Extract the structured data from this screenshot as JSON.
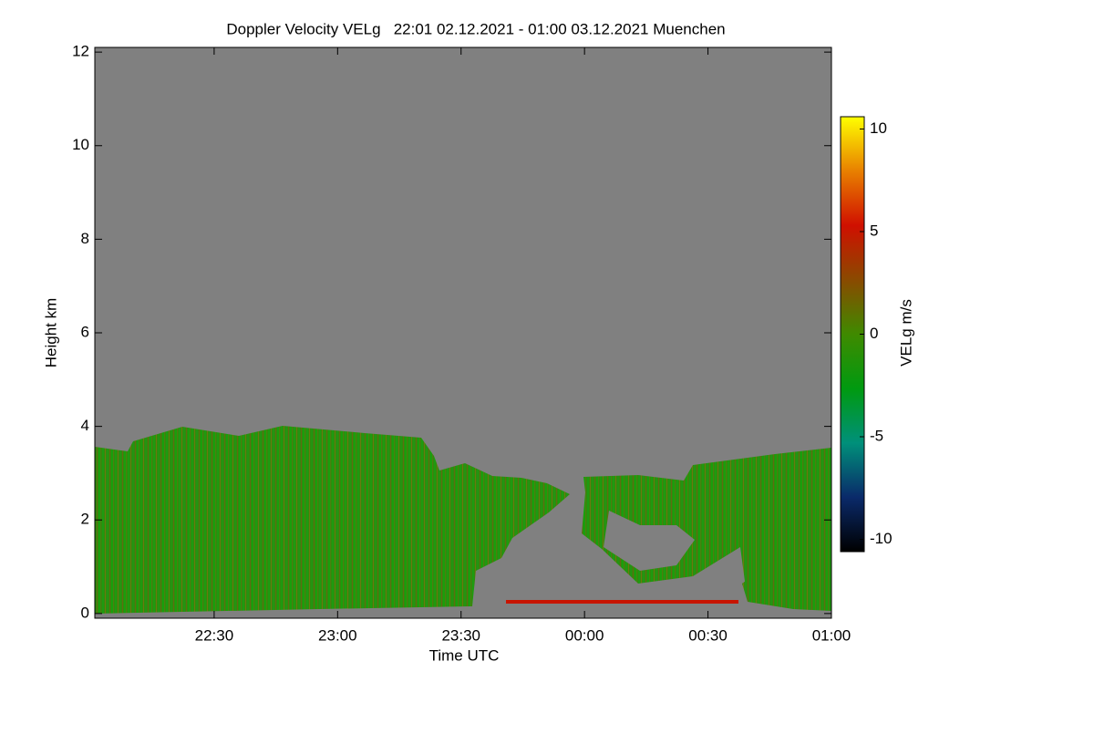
{
  "chart_data": {
    "type": "heatmap",
    "title": "Doppler Velocity VELg   22:01 02.12.2021 - 01:00 03.12.2021 Muenchen",
    "xlabel": "Time UTC",
    "ylabel": "Height km",
    "colorbar_label": "VELg m/s",
    "xlim": [
      22.0167,
      25.0
    ],
    "xticks": [
      {
        "value": 22.5,
        "label": "22:30"
      },
      {
        "value": 23,
        "label": "23:00"
      },
      {
        "value": 23.5,
        "label": "23:30"
      },
      {
        "value": 24,
        "label": "00:00"
      },
      {
        "value": 24.5,
        "label": "00:30"
      },
      {
        "value": 25,
        "label": "01:00"
      }
    ],
    "ylim": [
      -0.1,
      12.1
    ],
    "yticks": [
      0,
      2,
      4,
      6,
      8,
      10,
      12
    ],
    "zlim": [
      -10.6,
      10.6
    ],
    "zticks": [
      -10,
      -5,
      0,
      5,
      10
    ],
    "colorscale": [
      "#000000",
      "#0a2a6a",
      "#00907a",
      "#009a10",
      "#3f8a00",
      "#8a4a00",
      "#d01000",
      "#e88000",
      "#ffff00"
    ],
    "background": "#808080"
  }
}
